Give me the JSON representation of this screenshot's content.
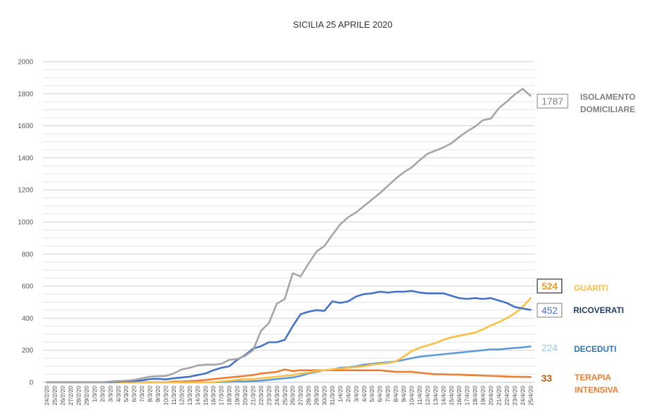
{
  "chart_data": {
    "type": "line",
    "title": "SICILIA 25 APRILE 2020",
    "xlabel": "",
    "ylabel": "",
    "ylim": [
      0,
      2000
    ],
    "yticks": [
      0,
      200,
      400,
      600,
      800,
      1000,
      1200,
      1400,
      1600,
      1800,
      2000
    ],
    "grid": true,
    "legend_position": "right",
    "x": [
      "24/2/20",
      "25/2/20",
      "26/2/20",
      "27/2/20",
      "28/2/20",
      "29/2/20",
      "1/3/20",
      "2/3/20",
      "3/3/20",
      "4/3/20",
      "5/3/20",
      "6/3/20",
      "7/3/20",
      "8/3/20",
      "9/3/20",
      "10/3/20",
      "11/3/20",
      "12/3/20",
      "13/3/20",
      "14/3/20",
      "15/3/20",
      "16/3/20",
      "17/3/20",
      "18/3/20",
      "19/3/20",
      "20/3/20",
      "21/3/20",
      "22/3/20",
      "23/3/20",
      "24/3/20",
      "25/3/20",
      "26/3/20",
      "27/3/20",
      "28/3/20",
      "29/3/20",
      "30/3/20",
      "31/3/20",
      "1/4/20",
      "2/4/20",
      "3/4/20",
      "4/4/20",
      "5/4/20",
      "6/4/20",
      "7/4/20",
      "8/4/20",
      "9/4/20",
      "10/4/20",
      "11/4/20",
      "12/4/20",
      "13/4/20",
      "14/4/20",
      "15/4/20",
      "16/4/20",
      "17/4/20",
      "18/4/20",
      "19/4/20",
      "20/4/20",
      "21/4/20",
      "22/4/20",
      "23/4/20",
      "24/4/20",
      "25/4/20"
    ],
    "series": [
      {
        "key": "iso",
        "name": "ISOLAMENTO DOMICILIARE",
        "color": "#a5a5a5",
        "end_label": "1787",
        "end_label_color": "#7f7f7f",
        "values": [
          0,
          0,
          0,
          0,
          0,
          0,
          0,
          0,
          5,
          8,
          10,
          15,
          25,
          35,
          38,
          40,
          55,
          80,
          90,
          105,
          110,
          110,
          115,
          140,
          145,
          165,
          200,
          320,
          370,
          490,
          520,
          680,
          660,
          740,
          815,
          850,
          920,
          985,
          1030,
          1060,
          1100,
          1140,
          1180,
          1225,
          1270,
          1310,
          1340,
          1385,
          1425,
          1445,
          1465,
          1490,
          1530,
          1565,
          1595,
          1635,
          1645,
          1710,
          1750,
          1795,
          1830,
          1787
        ]
      },
      {
        "key": "ric",
        "name": "RICOVERATI",
        "color": "#4472c4",
        "end_label": "452",
        "end_label_color": "#4472c4",
        "values": [
          0,
          0,
          0,
          0,
          0,
          0,
          0,
          0,
          2,
          4,
          6,
          8,
          12,
          20,
          22,
          18,
          25,
          30,
          35,
          45,
          55,
          75,
          90,
          100,
          140,
          170,
          210,
          225,
          250,
          250,
          265,
          350,
          425,
          440,
          450,
          445,
          505,
          495,
          505,
          535,
          550,
          555,
          565,
          560,
          565,
          565,
          570,
          560,
          555,
          555,
          555,
          540,
          525,
          520,
          525,
          520,
          525,
          510,
          495,
          470,
          460,
          452
        ]
      },
      {
        "key": "gua",
        "name": "GUARITI",
        "color": "#fbbf45",
        "end_label": "524",
        "end_label_color": "#ed9a1f",
        "values": [
          0,
          0,
          0,
          0,
          0,
          0,
          0,
          0,
          0,
          0,
          0,
          0,
          0,
          0,
          0,
          0,
          0,
          0,
          0,
          0,
          0,
          0,
          5,
          10,
          15,
          20,
          20,
          25,
          30,
          35,
          40,
          45,
          55,
          60,
          70,
          75,
          80,
          85,
          90,
          95,
          100,
          110,
          115,
          120,
          130,
          160,
          195,
          215,
          230,
          245,
          265,
          280,
          290,
          300,
          310,
          330,
          355,
          375,
          400,
          430,
          470,
          524
        ]
      },
      {
        "key": "dec",
        "name": "DECEDUTI",
        "color": "#5b9bd5",
        "end_label": "224",
        "end_label_color": "#9dc3e6",
        "values": [
          0,
          0,
          0,
          0,
          0,
          0,
          0,
          0,
          0,
          0,
          0,
          0,
          0,
          0,
          0,
          0,
          0,
          0,
          0,
          0,
          0,
          0,
          2,
          3,
          5,
          5,
          8,
          10,
          15,
          20,
          25,
          30,
          40,
          55,
          65,
          75,
          80,
          90,
          92,
          100,
          110,
          115,
          120,
          125,
          130,
          140,
          150,
          160,
          165,
          170,
          175,
          180,
          185,
          190,
          195,
          200,
          205,
          205,
          210,
          214,
          218,
          224
        ]
      },
      {
        "key": "ter",
        "name": "TERAPIA INTENSIVA",
        "color": "#ed7d31",
        "end_label": "33",
        "end_label_color": "#c55a11",
        "values": [
          0,
          0,
          0,
          0,
          0,
          0,
          0,
          0,
          0,
          0,
          0,
          0,
          0,
          0,
          0,
          0,
          5,
          5,
          8,
          10,
          15,
          20,
          25,
          30,
          35,
          40,
          45,
          55,
          60,
          65,
          80,
          70,
          75,
          75,
          75,
          75,
          75,
          75,
          75,
          75,
          75,
          75,
          75,
          70,
          65,
          65,
          65,
          60,
          55,
          50,
          50,
          48,
          48,
          45,
          44,
          42,
          40,
          38,
          36,
          35,
          34,
          33
        ]
      }
    ]
  }
}
